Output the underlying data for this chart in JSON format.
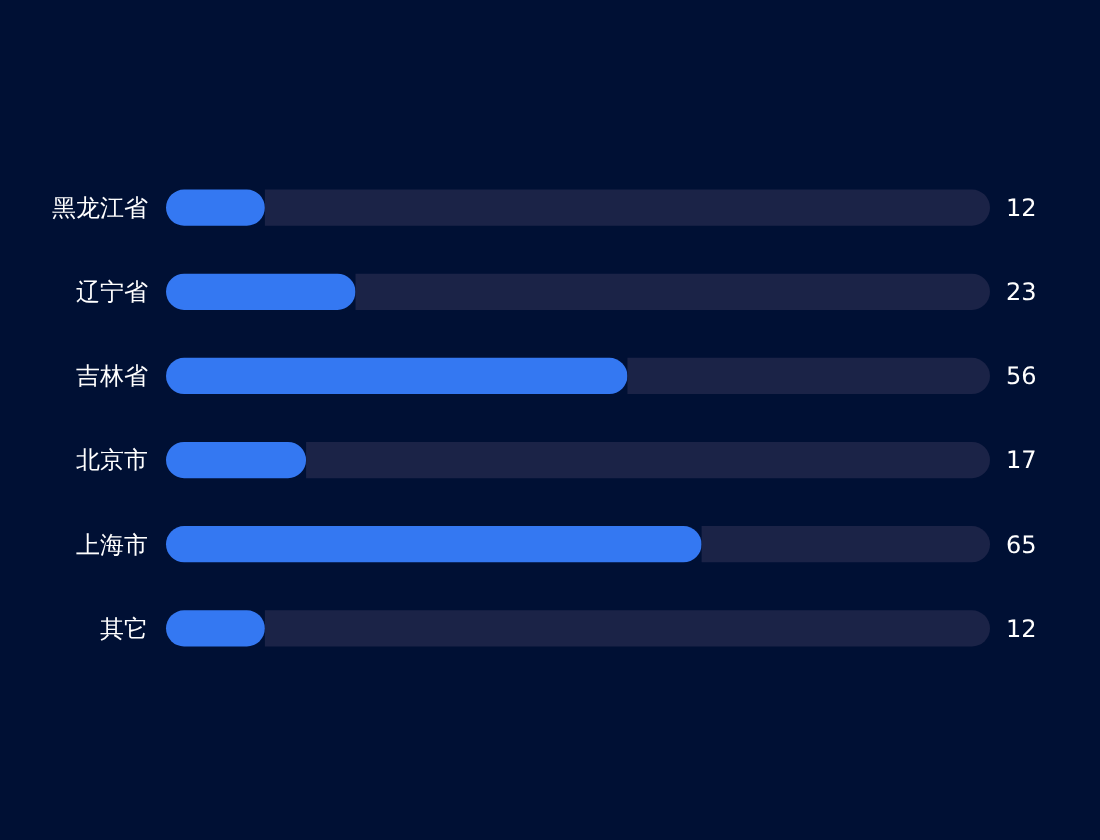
{
  "chart_data": {
    "type": "bar",
    "orientation": "horizontal",
    "stacked": true,
    "categories": [
      "黑龙江省",
      "辽宁省",
      "吉林省",
      "北京市",
      "上海市",
      "其它"
    ],
    "series": [
      {
        "color": "#3478f2",
        "values": [
          12,
          23,
          56,
          17,
          65,
          12
        ],
        "value_labels": [
          "12",
          "23",
          "56",
          "17",
          "65",
          "12"
        ]
      },
      {
        "color": "#1b2347",
        "values": [
          88,
          77,
          44,
          83,
          35,
          88
        ]
      }
    ],
    "xlim": [
      0,
      100
    ],
    "tick_labels": "y",
    "grid": false,
    "legend": false
  }
}
